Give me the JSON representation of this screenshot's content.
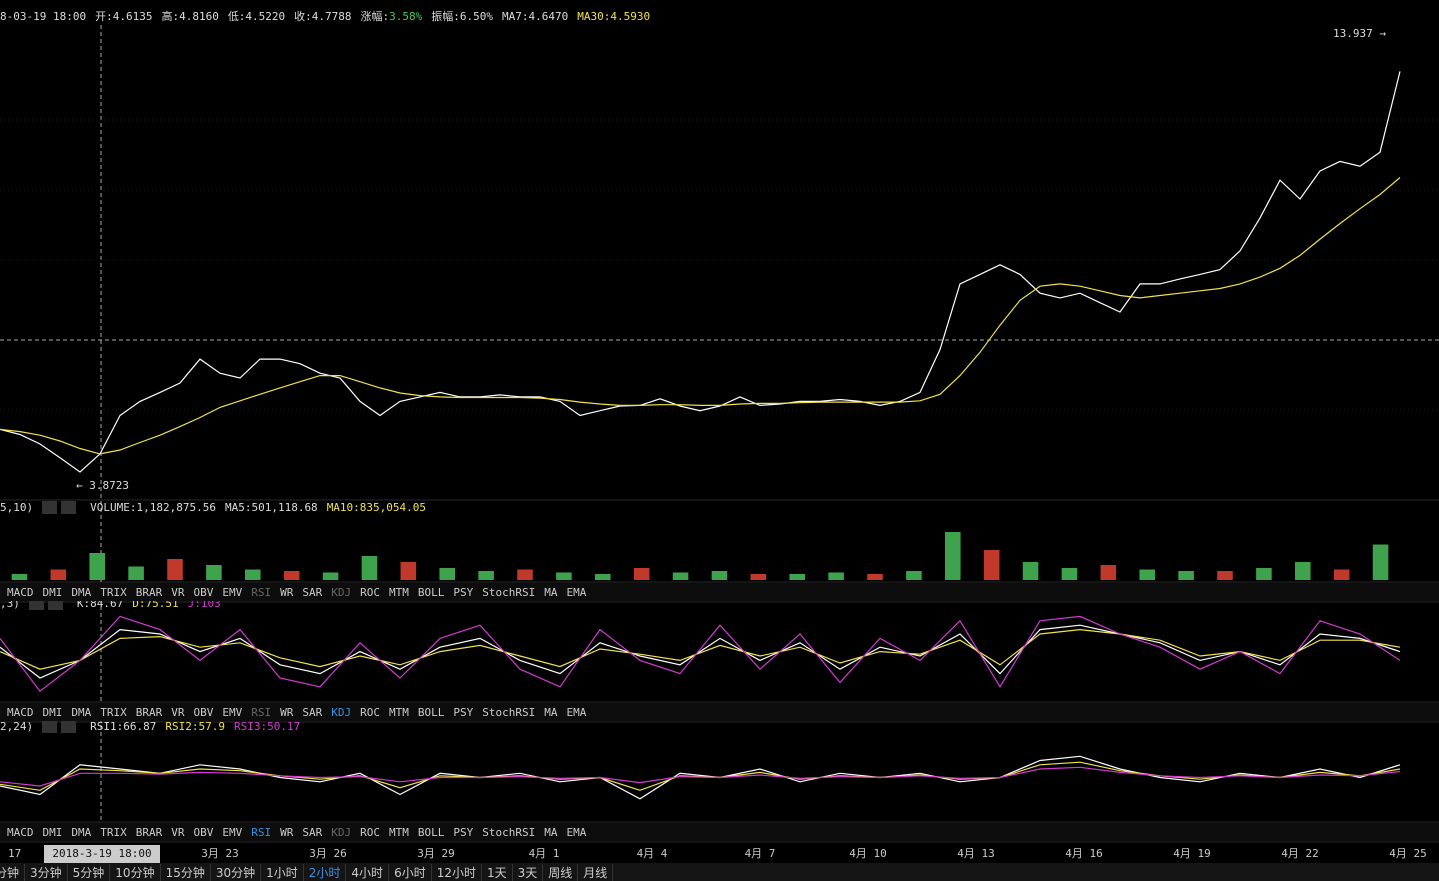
{
  "header": [
    {
      "text": "8-03-19 18:00",
      "color": "#ddd"
    },
    {
      "text": "开:4.6135",
      "color": "#ddd"
    },
    {
      "text": "高:4.8160",
      "color": "#ddd"
    },
    {
      "text": "低:4.5220",
      "color": "#ddd"
    },
    {
      "text": "收:4.7788",
      "color": "#ddd"
    },
    {
      "text": "涨幅:",
      "color": "#ddd"
    },
    {
      "text": "3.58%",
      "color": "#3fcf5f"
    },
    {
      "text": "振幅:6.50%",
      "color": "#ddd"
    },
    {
      "text": "MA7:4.6470",
      "color": "#ddd"
    },
    {
      "text": "MA30:4.5930",
      "color": "#f2e14a"
    }
  ],
  "chart_data": [
    {
      "type": "line",
      "log_scale": true,
      "ylim": [
        3.713,
        15.55
      ],
      "max_label": "13.937 →",
      "min_label": "← 3.8723",
      "series": [
        {
          "color": "#ffffff",
          "values": [
            4.58,
            4.51,
            4.38,
            4.2,
            4.02,
            4.25,
            4.78,
            4.99,
            5.13,
            5.28,
            5.68,
            5.44,
            5.36,
            5.68,
            5.68,
            5.6,
            5.44,
            5.36,
            4.99,
            4.78,
            4.99,
            5.06,
            5.13,
            5.06,
            5.06,
            5.09,
            5.06,
            5.06,
            4.99,
            4.78,
            4.85,
            4.92,
            4.93,
            5.03,
            4.92,
            4.85,
            4.92,
            5.06,
            4.93,
            4.95,
            4.99,
            4.99,
            5.02,
            4.99,
            4.93,
            4.99,
            5.13,
            5.85,
            7.15,
            7.36,
            7.58,
            7.36,
            6.95,
            6.85,
            6.95,
            6.75,
            6.56,
            7.15,
            7.15,
            7.26,
            7.36,
            7.47,
            7.91,
            8.75,
            9.82,
            9.27,
            10.1,
            10.4,
            10.25,
            10.7,
            13.7
          ]
        },
        {
          "color": "#f2e14a",
          "values": [
            4.58,
            4.55,
            4.5,
            4.42,
            4.32,
            4.25,
            4.3,
            4.4,
            4.5,
            4.62,
            4.75,
            4.9,
            5.0,
            5.1,
            5.2,
            5.3,
            5.4,
            5.4,
            5.3,
            5.2,
            5.12,
            5.08,
            5.06,
            5.05,
            5.05,
            5.05,
            5.05,
            5.04,
            5.02,
            4.98,
            4.95,
            4.93,
            4.93,
            4.94,
            4.94,
            4.93,
            4.93,
            4.95,
            4.96,
            4.96,
            4.97,
            4.98,
            4.98,
            4.98,
            4.98,
            4.98,
            5.0,
            5.1,
            5.4,
            5.8,
            6.3,
            6.8,
            7.1,
            7.15,
            7.1,
            7.0,
            6.9,
            6.85,
            6.9,
            6.95,
            7.0,
            7.05,
            7.15,
            7.3,
            7.5,
            7.8,
            8.2,
            8.6,
            9.0,
            9.4,
            9.9
          ]
        }
      ]
    },
    {
      "type": "bar",
      "ylim": [
        0,
        2000000
      ],
      "headers": [
        {
          "text": "5,10)",
          "color": "#ddd"
        },
        {
          "text": "VOLUME:1,182,875.56",
          "color": "#ddd"
        },
        {
          "text": "MA5:501,118.68",
          "color": "#ddd"
        },
        {
          "text": "MA10:835,054.05",
          "color": "#f2e14a"
        }
      ],
      "color": "#3fa34d",
      "values": [
        200000,
        350000,
        900000,
        450000,
        700000,
        500000,
        350000,
        300000,
        250000,
        800000,
        600000,
        400000,
        300000,
        350000,
        250000,
        200000,
        400000,
        250000,
        300000,
        200000,
        200000,
        250000,
        200000,
        300000,
        1600000,
        1000000,
        600000,
        400000,
        500000,
        350000,
        300000,
        300000,
        400000,
        600000,
        350000,
        1182875
      ]
    },
    {
      "type": "line",
      "ylim": [
        0,
        100
      ],
      "headers": [
        {
          "text": ",3)",
          "color": "#ddd"
        },
        {
          "text": "K:84.67",
          "color": "#ddd"
        },
        {
          "text": "D:75.51",
          "color": "#f2e14a"
        },
        {
          "text": "J:103",
          "color": "#d23ad2"
        }
      ],
      "series": [
        {
          "color": "#ffffff",
          "values": [
            60,
            25,
            45,
            80,
            75,
            55,
            70,
            40,
            30,
            55,
            35,
            60,
            70,
            45,
            30,
            65,
            50,
            40,
            70,
            45,
            65,
            35,
            60,
            50,
            75,
            30,
            80,
            85,
            75,
            65,
            45,
            55,
            40,
            75,
            70,
            55
          ]
        },
        {
          "color": "#f2e14a",
          "values": [
            55,
            35,
            45,
            70,
            72,
            60,
            65,
            48,
            38,
            50,
            40,
            55,
            62,
            50,
            38,
            58,
            52,
            45,
            62,
            50,
            60,
            42,
            55,
            52,
            68,
            40,
            75,
            80,
            75,
            68,
            50,
            55,
            45,
            68,
            68,
            60
          ]
        },
        {
          "color": "#d23ad2",
          "values": [
            70,
            10,
            45,
            95,
            80,
            45,
            80,
            25,
            15,
            65,
            25,
            70,
            85,
            35,
            15,
            80,
            45,
            30,
            85,
            35,
            75,
            20,
            70,
            45,
            90,
            15,
            90,
            95,
            75,
            60,
            35,
            55,
            30,
            90,
            75,
            45
          ]
        }
      ]
    },
    {
      "type": "line",
      "ylim": [
        0,
        100
      ],
      "headers": [
        {
          "text": "2,24)",
          "color": "#ddd"
        },
        {
          "text": "RSI1:66.87",
          "color": "#ddd"
        },
        {
          "text": "RSI2:57.9",
          "color": "#f2e14a"
        },
        {
          "text": "RSI3:50.17",
          "color": "#d23ad2"
        }
      ],
      "series": [
        {
          "color": "#ffffff",
          "values": [
            40,
            30,
            65,
            60,
            55,
            65,
            60,
            50,
            45,
            55,
            30,
            55,
            50,
            55,
            45,
            50,
            25,
            55,
            50,
            60,
            45,
            55,
            50,
            55,
            45,
            50,
            70,
            75,
            60,
            50,
            45,
            55,
            50,
            60,
            50,
            65
          ]
        },
        {
          "color": "#f2e14a",
          "values": [
            42,
            35,
            60,
            58,
            55,
            60,
            58,
            52,
            48,
            52,
            38,
            52,
            50,
            52,
            48,
            50,
            35,
            52,
            50,
            56,
            48,
            52,
            50,
            53,
            48,
            50,
            65,
            68,
            58,
            52,
            48,
            53,
            50,
            56,
            52,
            60
          ]
        },
        {
          "color": "#d23ad2",
          "values": [
            45,
            40,
            55,
            55,
            54,
            56,
            55,
            52,
            50,
            51,
            45,
            50,
            50,
            51,
            49,
            50,
            44,
            51,
            50,
            53,
            49,
            51,
            50,
            52,
            49,
            50,
            60,
            62,
            56,
            52,
            50,
            52,
            50,
            53,
            52,
            57
          ]
        }
      ]
    }
  ],
  "indicator_tabs": [
    "MACD",
    "DMI",
    "DMA",
    "TRIX",
    "BRAR",
    "VR",
    "OBV",
    "EMV",
    "RSI",
    "WR",
    "SAR",
    "KDJ",
    "ROC",
    "MTM",
    "BOLL",
    "PSY",
    "StochRSI",
    "MA",
    "EMA"
  ],
  "tab_rows": [
    {
      "dim": [
        "RSI",
        "KDJ"
      ],
      "active": ""
    },
    {
      "dim": [
        "RSI"
      ],
      "active": "KDJ"
    },
    {
      "dim": [
        "KDJ"
      ],
      "active": "RSI"
    }
  ],
  "time_axis": {
    "first": "17",
    "cursor": "2018-3-19 18:00",
    "labels": [
      "3月 23",
      "3月 26",
      "3月 29",
      "4月 1",
      "4月 4",
      "4月 7",
      "4月 10",
      "4月 13",
      "4月 16",
      "4月 19",
      "4月 22",
      "4月 25"
    ]
  },
  "periods": [
    "分钟",
    "3分钟",
    "5分钟",
    "10分钟",
    "15分钟",
    "30分钟",
    "1小时",
    "2小时",
    "4小时",
    "6小时",
    "12小时",
    "1天",
    "3天",
    "周线",
    "月线"
  ],
  "active_period": "2小时"
}
